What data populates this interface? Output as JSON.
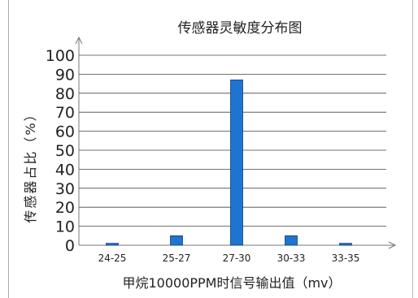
{
  "chart_data": {
    "type": "bar",
    "title": "传感器灵敏度分布图",
    "xlabel": "甲烷10000PPM时信号输出值（mv）",
    "ylabel": "传感器占比（%）",
    "categories": [
      "24-25",
      "25-27",
      "27-30",
      "30-33",
      "33-35"
    ],
    "values": [
      1,
      5,
      87,
      5,
      1
    ],
    "ylim": [
      0,
      100
    ],
    "yticks": [
      0,
      10,
      20,
      30,
      40,
      50,
      60,
      70,
      80,
      90,
      100
    ],
    "grid": true,
    "legend": "none",
    "colors": {
      "bar": "#1f74d0",
      "bar_edge": "#0b3f82",
      "grid": "#444444",
      "axis": "#777777"
    }
  }
}
